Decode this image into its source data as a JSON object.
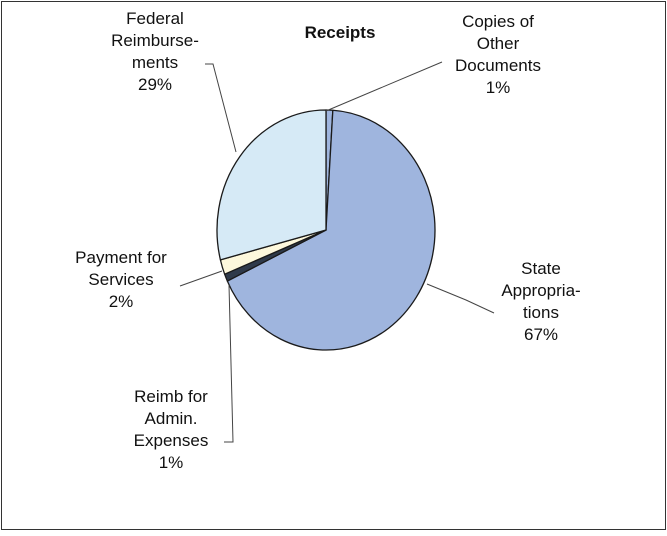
{
  "chart_data": {
    "type": "pie",
    "title": "Receipts",
    "legend": "none",
    "slices": [
      {
        "label_lines": [
          "Copies of",
          "Other",
          "Documents"
        ],
        "percent_label": "1%",
        "value": 1,
        "color": "#9fb5de"
      },
      {
        "label_lines": [
          "State",
          "Appropria-",
          "tions"
        ],
        "percent_label": "67%",
        "value": 67,
        "color": "#9fb5de"
      },
      {
        "label_lines": [
          "Reimb for",
          "Admin.",
          "Expenses"
        ],
        "percent_label": "1%",
        "value": 1,
        "color": "#2f3a4a"
      },
      {
        "label_lines": [
          "Payment for",
          "Services"
        ],
        "percent_label": "2%",
        "value": 2,
        "color": "#fdf8dc"
      },
      {
        "label_lines": [
          "Federal",
          "Reimburse-",
          "ments"
        ],
        "percent_label": "29%",
        "value": 29,
        "color": "#d6eaf6"
      }
    ]
  }
}
